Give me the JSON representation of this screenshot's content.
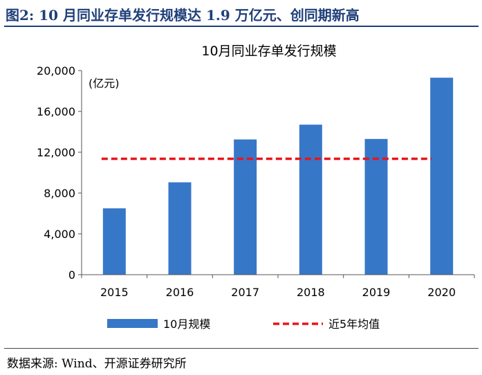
{
  "figure_title": "图2:  10 月同业存单发行规模达 1.9 万亿元、创同期新高",
  "source": "数据来源:  Wind、开源证券研究所",
  "colors": {
    "bar": "#3777c8",
    "avg_line": "#e8141a",
    "title": "#1f3f7a"
  },
  "chart_data": {
    "type": "bar",
    "title": "10月同业存单发行规模",
    "unit_label": "(亿元)",
    "categories": [
      "2015",
      "2016",
      "2017",
      "2018",
      "2019",
      "2020"
    ],
    "ylim": [
      0,
      20000
    ],
    "yticks": [
      0,
      4000,
      8000,
      12000,
      16000,
      20000
    ],
    "ytick_labels": [
      "0",
      "4,000",
      "8,000",
      "12,000",
      "16,000",
      "20,000"
    ],
    "series": [
      {
        "name": "10月规模",
        "kind": "bar",
        "values": [
          6500,
          9050,
          13250,
          14700,
          13300,
          19300
        ]
      },
      {
        "name": "近5年均值",
        "kind": "dashed-line",
        "values": [
          11360,
          11360,
          11360,
          11360,
          11360,
          11360
        ]
      }
    ],
    "legend": [
      "10月规模",
      "近5年均值"
    ],
    "grid": false
  }
}
